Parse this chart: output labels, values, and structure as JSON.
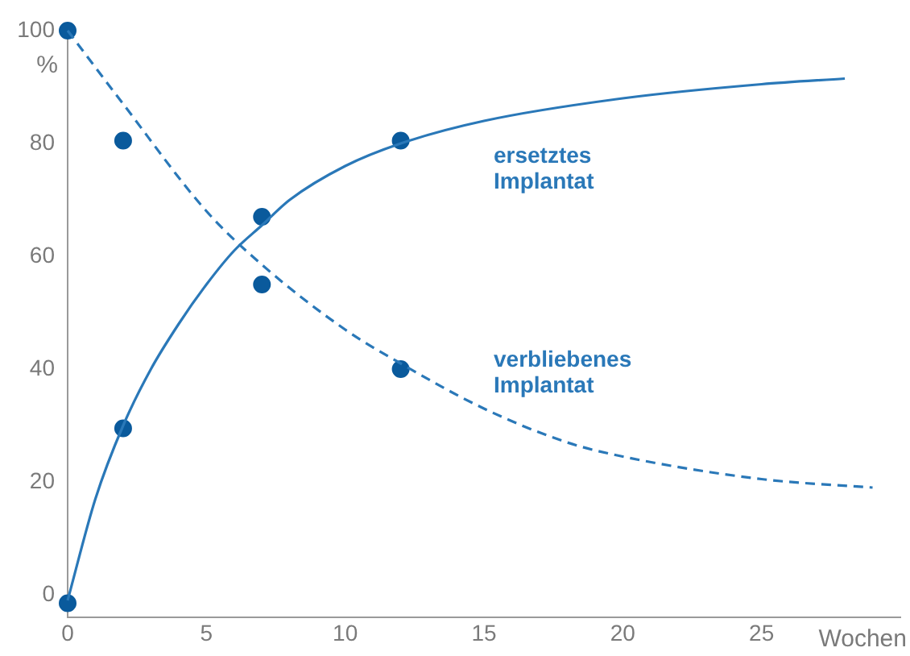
{
  "chart_data": {
    "type": "line",
    "xlabel": "Wochen",
    "ylabel": "%",
    "xlim": [
      0,
      30
    ],
    "xticks": [
      0,
      5,
      10,
      15,
      20,
      25
    ],
    "ylim": [
      -4,
      100
    ],
    "yticks": [
      0,
      20,
      40,
      60,
      80,
      100
    ],
    "grid": false,
    "legend": false,
    "marker": "none",
    "series": [
      {
        "name": "ersetztes Implantat",
        "color": "#2a78b8",
        "line_style": "solid",
        "x": [
          0,
          1,
          2,
          3,
          4,
          5,
          6,
          7,
          8,
          10,
          12,
          15,
          20,
          25,
          28
        ],
        "values": [
          -1,
          17,
          30,
          40,
          48,
          55,
          61,
          65.5,
          70,
          76,
          80,
          84,
          88,
          90.5,
          91.5
        ]
      },
      {
        "name": "verbliebenes Implantat",
        "color": "#2a78b8",
        "line_style": "dashed",
        "x": [
          0,
          2,
          5,
          7,
          10,
          12,
          15,
          18,
          20,
          25,
          29
        ],
        "values": [
          100,
          87,
          68,
          58.5,
          47,
          41,
          33,
          27,
          24.5,
          20.5,
          19
        ]
      },
      {
        "type": "scatter",
        "color": "#0a5a9c",
        "marker": "circle",
        "x": [
          0,
          2,
          7,
          12
        ],
        "values": [
          -1.5,
          29.5,
          67,
          80.5
        ]
      },
      {
        "type": "scatter",
        "color": "#0a5a9c",
        "marker": "circle",
        "x": [
          0,
          2,
          7,
          12
        ],
        "values": [
          100,
          80.5,
          55,
          40
        ]
      }
    ]
  }
}
